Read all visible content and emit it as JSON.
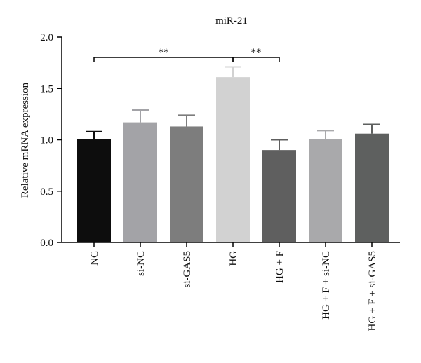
{
  "chart_data": {
    "type": "bar",
    "title": "miR-21",
    "ylabel": "Relative mRNA expression",
    "xlabel": "",
    "ylim": [
      0,
      2.0
    ],
    "yticks": [
      "0.0",
      "0.5",
      "1.0",
      "1.5",
      "2.0"
    ],
    "categories": [
      "NC",
      "si-NC",
      "si-GAS5",
      "HG",
      "HG + F",
      "HG + F + si-NC",
      "HG + F + si-GAS5"
    ],
    "values": [
      1.01,
      1.17,
      1.13,
      1.61,
      0.9,
      1.01,
      1.06
    ],
    "errors": [
      0.07,
      0.12,
      0.11,
      0.1,
      0.1,
      0.08,
      0.09
    ],
    "bar_colors": [
      "#0d0d0d",
      "#a3a3a7",
      "#7d7d7d",
      "#d2d2d2",
      "#5f5f5f",
      "#a9a9ab",
      "#5e605f"
    ],
    "significance": [
      {
        "from": 0,
        "to": 3,
        "label": "**"
      },
      {
        "from": 3,
        "to": 4,
        "label": "**"
      }
    ],
    "grid": false,
    "legend": "none"
  }
}
